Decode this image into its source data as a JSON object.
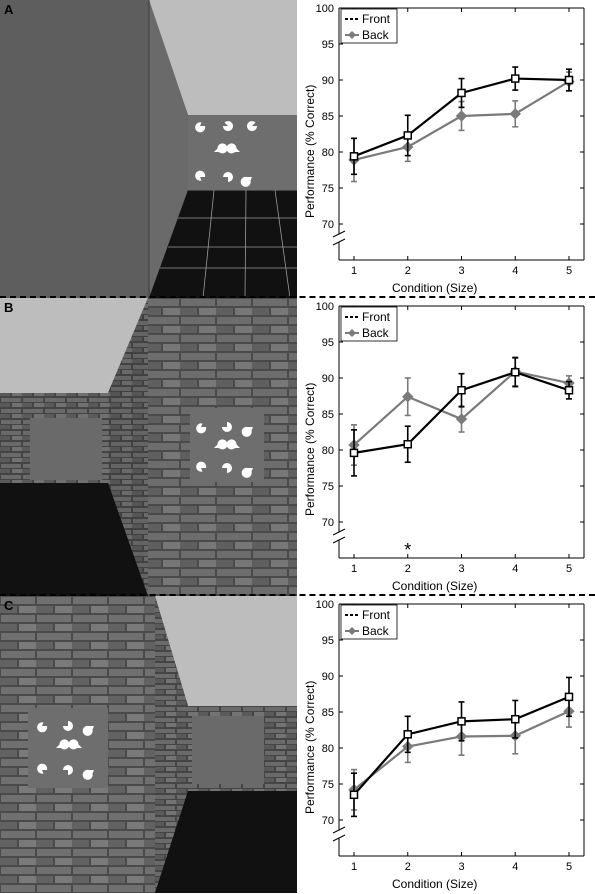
{
  "panels": [
    {
      "letter": "A",
      "scene": "plain-corridor",
      "stimulus_position": "back",
      "annotation": "",
      "chart_data": {
        "type": "line",
        "categories": [
          "1",
          "2",
          "3",
          "4",
          "5"
        ],
        "xlabel": "Condition (Size)",
        "ylabel": "Performance (% Correct)",
        "ylim": [
          65,
          100
        ],
        "yticks": [
          70,
          75,
          80,
          85,
          90,
          95,
          100
        ],
        "axis_break": true,
        "legend": "top-left",
        "series": [
          {
            "name": "Front",
            "color": "#000000",
            "marker": "open-square",
            "values": [
              79.4,
              82.3,
              88.2,
              90.2,
              90.0
            ],
            "errors": [
              2.5,
              2.8,
              2.0,
              1.6,
              1.5
            ]
          },
          {
            "name": "Back",
            "color": "#7a7a7a",
            "marker": "diamond",
            "values": [
              78.9,
              80.7,
              85.0,
              85.3,
              89.8
            ],
            "errors": [
              3.0,
              2.0,
              2.0,
              1.8,
              1.3
            ]
          }
        ]
      }
    },
    {
      "letter": "B",
      "scene": "brick-corridor-right",
      "stimulus_position": "front",
      "annotation": "*",
      "chart_data": {
        "type": "line",
        "categories": [
          "1",
          "2",
          "3",
          "4",
          "5"
        ],
        "xlabel": "Condition (Size)",
        "ylabel": "Performance (% Correct)",
        "ylim": [
          65,
          100
        ],
        "yticks": [
          70,
          75,
          80,
          85,
          90,
          95,
          100
        ],
        "axis_break": true,
        "legend": "top-left",
        "annotated_category": "2",
        "series": [
          {
            "name": "Front",
            "color": "#000000",
            "marker": "open-square",
            "values": [
              79.6,
              80.8,
              88.3,
              90.8,
              88.3
            ],
            "errors": [
              3.2,
              2.5,
              2.3,
              2.0,
              1.2
            ]
          },
          {
            "name": "Back",
            "color": "#7a7a7a",
            "marker": "diamond",
            "values": [
              80.7,
              87.4,
              84.3,
              90.9,
              89.3
            ],
            "errors": [
              2.8,
              2.6,
              1.8,
              2.0,
              1.0
            ]
          }
        ]
      }
    },
    {
      "letter": "C",
      "scene": "brick-corridor-left",
      "stimulus_position": "front",
      "annotation": "",
      "chart_data": {
        "type": "line",
        "categories": [
          "1",
          "2",
          "3",
          "4",
          "5"
        ],
        "xlabel": "Condition (Size)",
        "ylabel": "Performance (% Correct)",
        "ylim": [
          65,
          100
        ],
        "yticks": [
          70,
          75,
          80,
          85,
          90,
          95,
          100
        ],
        "axis_break": true,
        "legend": "top-left",
        "series": [
          {
            "name": "Front",
            "color": "#000000",
            "marker": "open-square",
            "values": [
              73.5,
              81.9,
              83.7,
              84.0,
              87.1
            ],
            "errors": [
              3.0,
              2.5,
              2.7,
              2.6,
              2.7
            ]
          },
          {
            "name": "Back",
            "color": "#7a7a7a",
            "marker": "diamond",
            "values": [
              74.2,
              80.2,
              81.6,
              81.7,
              85.1
            ],
            "errors": [
              2.8,
              2.2,
              2.6,
              2.5,
              2.2
            ]
          }
        ]
      }
    }
  ]
}
